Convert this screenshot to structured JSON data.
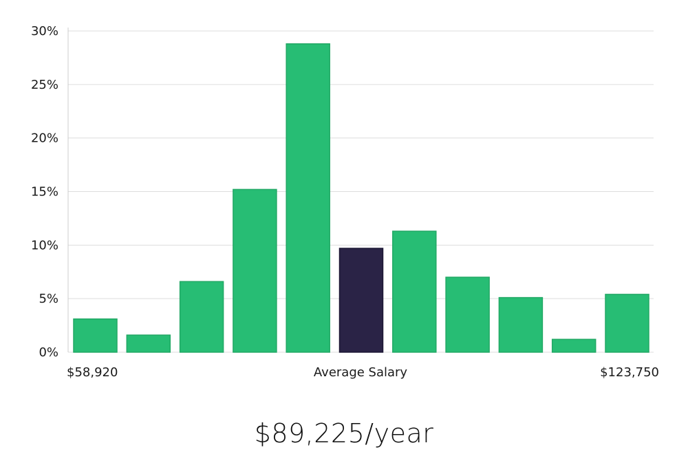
{
  "chart_data": {
    "type": "bar",
    "title": "",
    "xlabel": "",
    "ylabel": "",
    "ylim": [
      0,
      30
    ],
    "y_ticks": [
      "0%",
      "5%",
      "10%",
      "15%",
      "20%",
      "25%",
      "30%"
    ],
    "y_tick_values": [
      0,
      5,
      10,
      15,
      20,
      25,
      30
    ],
    "grid": true,
    "values": [
      3.1,
      1.6,
      6.6,
      15.2,
      28.8,
      9.7,
      11.3,
      7.0,
      5.1,
      1.2,
      5.4
    ],
    "highlight_index": 5,
    "colors": {
      "bar": "#27bd74",
      "highlight": "#2a2346",
      "grid": "#dddddd",
      "axis": "#cccccc"
    },
    "x_labels": {
      "left": "$58,920",
      "center": "Average Salary",
      "right": "$123,750"
    }
  },
  "headline": "$89,225/year"
}
